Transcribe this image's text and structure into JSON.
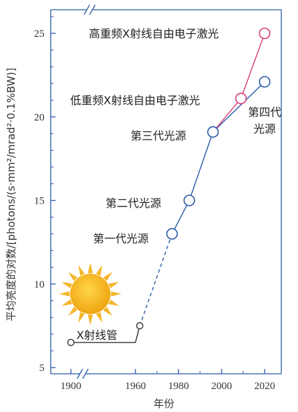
{
  "chart_data": {
    "type": "line",
    "title": "",
    "xlabel": "年份",
    "ylabel": "平均亮度的对数/[photons/(s·mm²/mrad²·0.1%BW)]",
    "xlim": [
      1895,
      2030
    ],
    "ylim": [
      5,
      26.5
    ],
    "axis_break": "x",
    "x_ticks": [
      "1900",
      "1960",
      "1980",
      "2000",
      "2020"
    ],
    "y_ticks": [
      "5",
      "10",
      "15",
      "20",
      "25"
    ],
    "grid": false,
    "series": [
      {
        "color": "#2b5aa8",
        "points": [
          {
            "x": 1900,
            "y": 6.5,
            "style": "solid",
            "marker": "filled-small"
          },
          {
            "x": 1960,
            "y": 6.5,
            "style": "solid",
            "marker": "none"
          },
          {
            "x": 1962,
            "y": 7.5,
            "style": "dashed",
            "marker": "filled-small"
          },
          {
            "x": 1977,
            "y": 13.0,
            "style": "solid",
            "marker": "open"
          },
          {
            "x": 1985,
            "y": 15.0,
            "style": "solid",
            "marker": "open"
          },
          {
            "x": 1996,
            "y": 19.1,
            "style": "solid",
            "marker": "open"
          },
          {
            "x": 2020,
            "y": 22.1,
            "style": "solid",
            "marker": "open"
          }
        ]
      },
      {
        "color": "#d63a7a",
        "points": [
          {
            "x": 1996,
            "y": 19.1
          },
          {
            "x": 2009,
            "y": 21.1
          },
          {
            "x": 2020,
            "y": 25.0
          }
        ]
      }
    ],
    "annotations": {
      "xray_tube": "X射线管",
      "gen1": "第一代光源",
      "gen2": "第二代光源",
      "gen3": "第三代光源",
      "gen4_line1": "第四代",
      "gen4_line2": "光源",
      "low_rep_fel": "低重频X射线自由电子激光",
      "high_rep_fel": "高重频X射线自由电子激光"
    },
    "colors": {
      "axis": "#2b5aa8",
      "tube_line": "#333333",
      "sun_core": "#f0a410",
      "sun_rays": "#f4b62a"
    }
  }
}
